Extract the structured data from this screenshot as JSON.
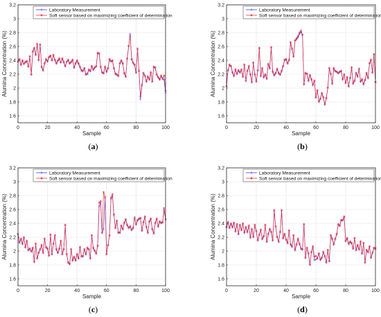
{
  "figure": {
    "background": "#ffffff",
    "colors": {
      "measurement": "#3a3aff",
      "soft_sensor": "#e8333a",
      "grid": "#e3e3e3",
      "axis": "#262626"
    }
  },
  "chart_data": [
    {
      "type": "line",
      "caption_letter": "a",
      "xlabel": "Sample",
      "ylabel": "Alumina Concentration (%)",
      "xlim": [
        0,
        100
      ],
      "ylim": [
        1.5,
        3.2
      ],
      "xticks": [
        0,
        20,
        40,
        60,
        80,
        100
      ],
      "yticks": [
        1.6,
        1.8,
        2.0,
        2.2,
        2.4,
        2.6,
        2.8,
        3.0,
        3.2
      ],
      "grid": true,
      "legend_position": "top-right",
      "series": [
        {
          "name": "Laboratory Measurement",
          "marker": "+",
          "y": [
            2.38,
            2.41,
            2.33,
            2.39,
            2.35,
            2.37,
            2.38,
            2.31,
            2.45,
            2.19,
            2.52,
            2.57,
            2.48,
            2.62,
            2.4,
            2.62,
            2.3,
            2.25,
            2.35,
            2.41,
            2.38,
            2.44,
            2.46,
            2.4,
            2.47,
            2.4,
            2.35,
            2.39,
            2.42,
            2.37,
            2.42,
            2.37,
            2.31,
            2.38,
            2.4,
            2.35,
            2.37,
            2.4,
            2.29,
            2.35,
            2.39,
            2.35,
            2.3,
            2.25,
            2.24,
            2.28,
            2.19,
            2.2,
            2.26,
            2.24,
            2.31,
            2.26,
            2.29,
            2.31,
            2.5,
            2.49,
            2.3,
            2.22,
            2.21,
            2.3,
            2.23,
            2.28,
            2.41,
            2.38,
            2.39,
            2.28,
            2.2,
            2.19,
            2.17,
            2.35,
            2.39,
            2.35,
            2.21,
            2.16,
            2.42,
            2.6,
            2.78,
            2.41,
            2.36,
            2.33,
            2.22,
            2.55,
            2.24,
            1.84,
            2.03,
            2.21,
            2.17,
            2.09,
            2.16,
            2.12,
            2.22,
            2.09,
            2.3,
            2.29,
            2.19,
            2.15,
            2.12,
            2.17,
            2.13,
            2.12,
            1.93
          ]
        },
        {
          "name": "Soft sensor based on maximizing coefficient of determination",
          "marker": "*",
          "y": [
            2.38,
            2.42,
            2.34,
            2.4,
            2.35,
            2.38,
            2.39,
            2.31,
            2.46,
            2.2,
            2.53,
            2.58,
            2.48,
            2.64,
            2.41,
            2.63,
            2.31,
            2.26,
            2.36,
            2.42,
            2.39,
            2.45,
            2.47,
            2.4,
            2.48,
            2.41,
            2.36,
            2.4,
            2.43,
            2.37,
            2.43,
            2.38,
            2.32,
            2.38,
            2.41,
            2.36,
            2.38,
            2.41,
            2.3,
            2.36,
            2.4,
            2.36,
            2.31,
            2.26,
            2.25,
            2.29,
            2.2,
            2.21,
            2.27,
            2.25,
            2.32,
            2.27,
            2.3,
            2.32,
            2.51,
            2.5,
            2.31,
            2.23,
            2.22,
            2.31,
            2.24,
            2.29,
            2.42,
            2.39,
            2.4,
            2.29,
            2.21,
            2.2,
            2.18,
            2.36,
            2.4,
            2.36,
            2.22,
            2.17,
            2.43,
            2.61,
            2.75,
            2.42,
            2.37,
            2.34,
            2.23,
            2.57,
            2.25,
            1.88,
            2.05,
            2.22,
            2.18,
            2.1,
            2.17,
            2.13,
            2.23,
            2.1,
            2.31,
            2.3,
            2.2,
            2.16,
            2.13,
            2.18,
            2.14,
            2.18,
            1.96
          ]
        }
      ]
    },
    {
      "type": "line",
      "caption_letter": "b",
      "xlabel": "Sample",
      "ylabel": "Alumina Concentration (%)",
      "xlim": [
        0,
        100
      ],
      "ylim": [
        1.5,
        3.2
      ],
      "xticks": [
        0,
        20,
        40,
        60,
        80,
        100
      ],
      "yticks": [
        1.6,
        1.8,
        2.0,
        2.2,
        2.4,
        2.6,
        2.8,
        3.0,
        3.2
      ],
      "grid": true,
      "legend_position": "top-right",
      "series": [
        {
          "name": "Laboratory Measurement",
          "marker": "+",
          "y": [
            2.02,
            2.25,
            2.33,
            2.31,
            2.22,
            2.17,
            2.26,
            2.2,
            2.25,
            2.22,
            2.26,
            2.16,
            2.33,
            2.1,
            2.24,
            2.31,
            2.19,
            2.08,
            2.36,
            2.19,
            2.09,
            2.25,
            2.57,
            2.17,
            2.28,
            2.15,
            2.19,
            2.13,
            2.34,
            2.28,
            2.58,
            2.23,
            2.18,
            2.21,
            2.27,
            2.21,
            2.19,
            2.24,
            2.31,
            2.4,
            2.41,
            2.35,
            2.4,
            2.65,
            2.56,
            2.45,
            2.68,
            2.7,
            2.73,
            2.78,
            2.81,
            2.76,
            2.05,
            2.21,
            2.2,
            2.1,
            2.18,
            2.12,
            2.04,
            2.1,
            1.86,
            1.96,
            1.8,
            1.84,
            1.92,
            1.86,
            1.76,
            1.85,
            2.0,
            2.28,
            2.2,
            2.06,
            2.28,
            2.24,
            2.23,
            2.21,
            2.23,
            2.24,
            2.12,
            2.19,
            2.07,
            2.15,
            2.02,
            2.14,
            2.29,
            2.06,
            2.1,
            2.21,
            2.16,
            2.27,
            2.09,
            2.12,
            2.05,
            2.11,
            2.21,
            2.14,
            2.35,
            2.4,
            2.22,
            2.48,
            2.08
          ]
        },
        {
          "name": "Soft sensor based on maximizing coefficient of determination",
          "marker": "*",
          "y": [
            2.03,
            2.26,
            2.34,
            2.32,
            2.23,
            2.18,
            2.27,
            2.21,
            2.26,
            2.23,
            2.27,
            2.17,
            2.34,
            2.11,
            2.25,
            2.32,
            2.2,
            2.09,
            2.37,
            2.2,
            2.1,
            2.26,
            2.58,
            2.18,
            2.29,
            2.16,
            2.2,
            2.14,
            2.35,
            2.29,
            2.59,
            2.24,
            2.19,
            2.22,
            2.28,
            2.22,
            2.2,
            2.25,
            2.32,
            2.41,
            2.42,
            2.36,
            2.41,
            2.66,
            2.57,
            2.46,
            2.69,
            2.72,
            2.75,
            2.8,
            2.83,
            2.77,
            2.06,
            2.22,
            2.21,
            2.11,
            2.19,
            2.13,
            2.05,
            2.11,
            1.87,
            1.97,
            1.81,
            1.85,
            1.93,
            1.87,
            1.77,
            1.86,
            2.01,
            2.29,
            2.21,
            2.07,
            2.29,
            2.25,
            2.24,
            2.22,
            2.24,
            2.25,
            2.13,
            2.2,
            2.08,
            2.16,
            2.03,
            2.15,
            2.3,
            2.07,
            2.11,
            2.22,
            2.17,
            2.28,
            2.1,
            2.13,
            2.06,
            2.12,
            2.22,
            2.15,
            2.36,
            2.41,
            2.23,
            2.49,
            2.09
          ]
        }
      ]
    },
    {
      "type": "line",
      "caption_letter": "c",
      "xlabel": "Sample",
      "ylabel": "Alumina Concentration (%)",
      "xlim": [
        0,
        100
      ],
      "ylim": [
        1.5,
        3.2
      ],
      "xticks": [
        0,
        20,
        40,
        60,
        80,
        100
      ],
      "yticks": [
        1.6,
        1.8,
        2.0,
        2.2,
        2.4,
        2.6,
        2.8,
        3.0,
        3.2
      ],
      "grid": true,
      "legend_position": "top-right",
      "series": [
        {
          "name": "Laboratory Measurement",
          "marker": "+",
          "y": [
            2.24,
            2.12,
            2.17,
            2.1,
            2.19,
            2.05,
            2.14,
            2.01,
            2.03,
            1.99,
            2.04,
            1.84,
            2.1,
            1.89,
            1.97,
            2.02,
            2.08,
            1.97,
            2.17,
            2.05,
            2.03,
            1.93,
            2.23,
            1.95,
            2.1,
            2.22,
            2.02,
            1.97,
            2.03,
            2.14,
            1.95,
            2.02,
            2.37,
            1.95,
            1.83,
            1.81,
            2.02,
            1.86,
            1.91,
            1.86,
            1.95,
            1.89,
            2.05,
            1.92,
            1.92,
            2.02,
            1.95,
            2.04,
            2.02,
            1.89,
            2.22,
            2.04,
            2.0,
            1.96,
            2.07,
            2.64,
            2.7,
            2.26,
            2.32,
            2.76,
            1.95,
            2.08,
            2.22,
            2.75,
            2.79,
            2.52,
            2.33,
            2.43,
            2.26,
            2.26,
            2.36,
            2.31,
            2.4,
            2.45,
            2.37,
            2.33,
            2.35,
            2.3,
            2.33,
            2.49,
            2.38,
            2.44,
            2.46,
            2.47,
            2.29,
            2.41,
            2.49,
            2.34,
            2.26,
            2.42,
            2.46,
            2.31,
            2.25,
            2.4,
            2.46,
            2.35,
            2.42,
            2.4,
            2.41,
            2.59,
            2.45
          ]
        },
        {
          "name": "Soft sensor based on maximizing coefficient of determination",
          "marker": "*",
          "y": [
            2.25,
            2.13,
            2.18,
            2.11,
            2.2,
            2.06,
            2.15,
            2.02,
            2.04,
            2.0,
            2.05,
            1.85,
            2.11,
            1.9,
            1.98,
            2.03,
            2.09,
            1.98,
            2.18,
            2.06,
            2.04,
            1.94,
            2.24,
            1.96,
            2.11,
            2.23,
            2.03,
            1.98,
            2.04,
            2.15,
            1.96,
            2.03,
            2.38,
            1.96,
            1.84,
            1.82,
            2.03,
            1.87,
            1.92,
            1.87,
            1.96,
            1.9,
            2.06,
            1.93,
            1.93,
            2.03,
            1.96,
            2.05,
            2.03,
            1.9,
            2.23,
            2.05,
            2.01,
            1.97,
            2.08,
            2.7,
            2.72,
            2.27,
            2.85,
            2.78,
            1.96,
            2.09,
            2.23,
            2.77,
            2.82,
            2.53,
            2.34,
            2.44,
            2.27,
            2.27,
            2.37,
            2.32,
            2.41,
            2.46,
            2.38,
            2.34,
            2.36,
            2.31,
            2.34,
            2.47,
            2.39,
            2.45,
            2.47,
            2.48,
            2.3,
            2.42,
            2.5,
            2.35,
            2.27,
            2.43,
            2.47,
            2.32,
            2.26,
            2.41,
            2.47,
            2.36,
            2.43,
            2.41,
            2.42,
            2.62,
            2.46
          ]
        }
      ]
    },
    {
      "type": "line",
      "caption_letter": "d",
      "xlabel": "Sample",
      "ylabel": "Alumina Concentration (%)",
      "xlim": [
        0,
        100
      ],
      "ylim": [
        1.5,
        3.2
      ],
      "xticks": [
        0,
        20,
        40,
        60,
        80,
        100
      ],
      "yticks": [
        1.6,
        1.8,
        2.0,
        2.2,
        2.4,
        2.6,
        2.8,
        3.0,
        3.2
      ],
      "grid": true,
      "legend_position": "top-right",
      "series": [
        {
          "name": "Laboratory Measurement",
          "marker": "+",
          "y": [
            2.34,
            2.41,
            2.33,
            2.39,
            2.34,
            2.4,
            2.28,
            2.38,
            2.24,
            2.37,
            2.3,
            2.39,
            2.26,
            2.34,
            2.27,
            2.36,
            2.19,
            2.31,
            2.2,
            2.37,
            2.28,
            2.15,
            2.23,
            2.3,
            2.17,
            2.21,
            2.37,
            2.13,
            2.24,
            2.31,
            2.27,
            2.15,
            2.58,
            2.35,
            2.2,
            2.13,
            2.27,
            2.58,
            2.18,
            2.24,
            2.16,
            2.11,
            2.29,
            2.09,
            2.06,
            2.22,
            2.01,
            2.09,
            2.17,
            2.1,
            2.03,
            2.02,
            2.38,
            1.9,
            2.04,
            1.96,
            1.8,
            1.98,
            2.06,
            1.87,
            1.88,
            1.89,
            1.96,
            1.87,
            1.9,
            1.98,
            1.92,
            1.83,
            2.01,
            1.85,
            2.22,
            2.17,
            2.09,
            2.17,
            2.24,
            2.38,
            2.36,
            2.44,
            2.44,
            2.49,
            2.14,
            2.18,
            2.1,
            2.13,
            2.11,
            2.03,
            2.18,
            2.01,
            2.08,
            2.02,
            2.13,
            1.96,
            2.11,
            1.83,
            2.01,
            1.98,
            2.06,
            1.9,
            1.97,
            2.04,
            2.05
          ]
        },
        {
          "name": "Soft sensor based on maximizing coefficient of determination",
          "marker": "*",
          "y": [
            2.35,
            2.42,
            2.34,
            2.4,
            2.35,
            2.41,
            2.29,
            2.39,
            2.25,
            2.38,
            2.31,
            2.4,
            2.27,
            2.35,
            2.28,
            2.37,
            2.2,
            2.32,
            2.21,
            2.38,
            2.29,
            2.16,
            2.24,
            2.31,
            2.18,
            2.22,
            2.38,
            2.14,
            2.25,
            2.32,
            2.28,
            2.16,
            2.59,
            2.36,
            2.21,
            2.14,
            2.28,
            2.59,
            2.19,
            2.25,
            2.17,
            2.12,
            2.3,
            2.1,
            2.07,
            2.23,
            2.02,
            2.1,
            2.18,
            2.11,
            2.04,
            2.03,
            2.39,
            1.91,
            2.05,
            1.97,
            1.81,
            1.99,
            2.07,
            1.92,
            1.93,
            1.9,
            1.97,
            1.88,
            1.91,
            1.99,
            1.93,
            1.84,
            2.02,
            1.86,
            2.23,
            2.18,
            2.1,
            2.18,
            2.25,
            2.39,
            2.37,
            2.45,
            2.45,
            2.5,
            2.15,
            2.19,
            2.11,
            2.14,
            2.12,
            2.04,
            2.19,
            2.02,
            2.09,
            2.03,
            2.14,
            1.97,
            2.12,
            1.84,
            2.02,
            1.99,
            2.07,
            1.91,
            1.98,
            2.05,
            2.03
          ]
        }
      ]
    }
  ]
}
